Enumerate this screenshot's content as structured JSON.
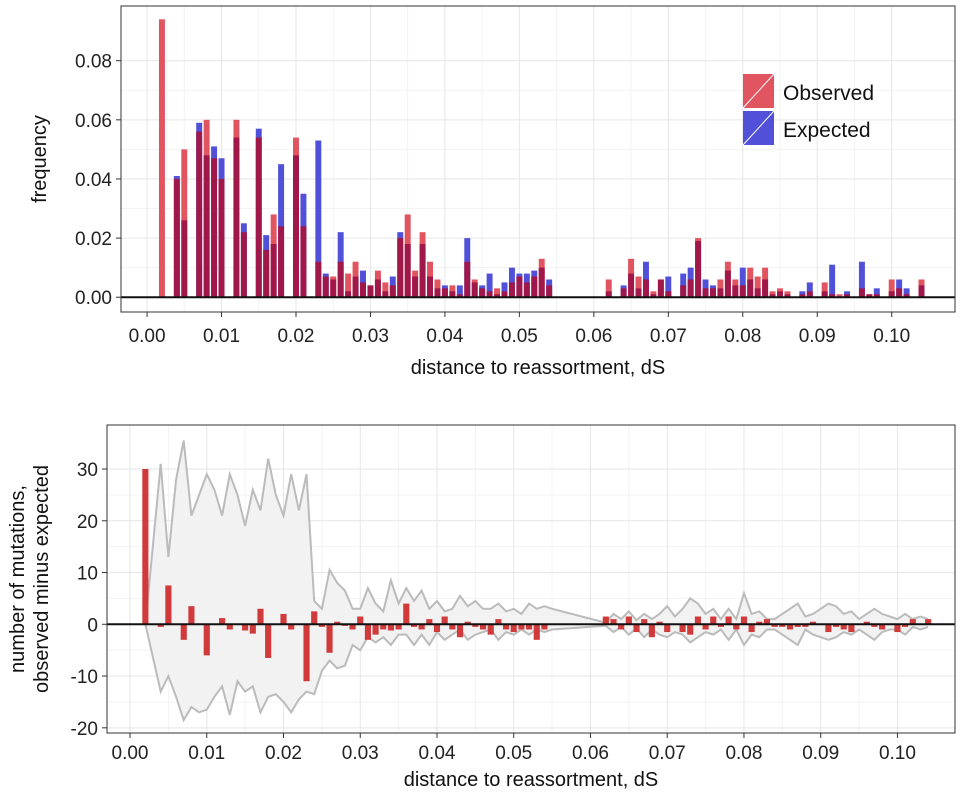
{
  "colors": {
    "observed": "#e0555f",
    "expected": "#5050d8",
    "overlap": "#a0174a",
    "residual": "#d03a3a",
    "envelope_fill": "#f2f2f2",
    "envelope_line": "#bbbbbb"
  },
  "chart_data": [
    {
      "type": "bar",
      "panel": "top",
      "xlabel": "distance to reassortment, dS",
      "ylabel": "frequency",
      "xlim": [
        -0.0035,
        0.1085
      ],
      "ylim": [
        -0.005,
        0.0985
      ],
      "x_ticks": [
        0.0,
        0.01,
        0.02,
        0.03,
        0.04,
        0.05,
        0.06,
        0.07,
        0.08,
        0.09,
        0.1
      ],
      "x_tick_labels": [
        "0.00",
        "0.01",
        "0.02",
        "0.03",
        "0.04",
        "0.05",
        "0.06",
        "0.07",
        "0.08",
        "0.09",
        "0.10"
      ],
      "y_ticks": [
        0.0,
        0.02,
        0.04,
        0.06,
        0.08
      ],
      "y_tick_labels": [
        "0.00",
        "0.02",
        "0.04",
        "0.06",
        "0.08"
      ],
      "grid": true,
      "legend": {
        "placement": "top-right",
        "entries": [
          "Observed",
          "Expected"
        ]
      },
      "bar_width": 0.0008,
      "series": [
        {
          "name": "Observed",
          "x": [
            0.002,
            0.004,
            0.005,
            0.007,
            0.008,
            0.009,
            0.01,
            0.012,
            0.013,
            0.015,
            0.016,
            0.017,
            0.018,
            0.02,
            0.021,
            0.023,
            0.024,
            0.025,
            0.026,
            0.027,
            0.028,
            0.029,
            0.03,
            0.031,
            0.032,
            0.033,
            0.034,
            0.035,
            0.036,
            0.037,
            0.038,
            0.039,
            0.04,
            0.041,
            0.042,
            0.043,
            0.044,
            0.045,
            0.046,
            0.047,
            0.048,
            0.049,
            0.05,
            0.051,
            0.052,
            0.053,
            0.054,
            0.062,
            0.064,
            0.065,
            0.066,
            0.067,
            0.068,
            0.069,
            0.07,
            0.072,
            0.073,
            0.074,
            0.075,
            0.076,
            0.077,
            0.078,
            0.079,
            0.08,
            0.081,
            0.082,
            0.083,
            0.084,
            0.085,
            0.086,
            0.088,
            0.089,
            0.091,
            0.092,
            0.093,
            0.094,
            0.096,
            0.097,
            0.098,
            0.1,
            0.101,
            0.102,
            0.104
          ],
          "values": [
            0.094,
            0.04,
            0.05,
            0.056,
            0.06,
            0.047,
            0.04,
            0.06,
            0.022,
            0.054,
            0.016,
            0.028,
            0.024,
            0.054,
            0.024,
            0.012,
            0.007,
            0.007,
            0.012,
            0.008,
            0.012,
            0.005,
            0.004,
            0.009,
            0.005,
            0.004,
            0.02,
            0.028,
            0.009,
            0.022,
            0.012,
            0.006,
            0.003,
            0.004,
            0.001,
            0.012,
            0.006,
            0.003,
            0.002,
            0.003,
            0.002,
            0.005,
            0.007,
            0.005,
            0.007,
            0.013,
            0.004,
            0.006,
            0.003,
            0.013,
            0.007,
            0.006,
            0.002,
            0.006,
            0.002,
            0.004,
            0.006,
            0.02,
            0.003,
            0.003,
            0.006,
            0.012,
            0.006,
            0.004,
            0.01,
            0.007,
            0.01,
            0.002,
            0.003,
            0.002,
            0.001,
            0.002,
            0.005,
            0.001,
            0.001,
            0.001,
            0.003,
            0.001,
            0.001,
            0.006,
            0.003,
            0.001,
            0.006
          ]
        },
        {
          "name": "Expected",
          "x": [
            0.002,
            0.004,
            0.005,
            0.007,
            0.008,
            0.009,
            0.01,
            0.012,
            0.013,
            0.015,
            0.016,
            0.017,
            0.018,
            0.02,
            0.021,
            0.023,
            0.024,
            0.025,
            0.026,
            0.027,
            0.028,
            0.029,
            0.03,
            0.031,
            0.032,
            0.033,
            0.034,
            0.035,
            0.036,
            0.037,
            0.038,
            0.039,
            0.04,
            0.041,
            0.042,
            0.043,
            0.044,
            0.045,
            0.046,
            0.047,
            0.048,
            0.049,
            0.05,
            0.051,
            0.052,
            0.053,
            0.054,
            0.062,
            0.064,
            0.065,
            0.066,
            0.067,
            0.068,
            0.069,
            0.07,
            0.072,
            0.073,
            0.074,
            0.075,
            0.076,
            0.077,
            0.078,
            0.079,
            0.08,
            0.081,
            0.082,
            0.083,
            0.084,
            0.085,
            0.086,
            0.088,
            0.089,
            0.091,
            0.092,
            0.093,
            0.094,
            0.096,
            0.097,
            0.098,
            0.1,
            0.101,
            0.102,
            0.104
          ],
          "values": [
            0.0,
            0.041,
            0.026,
            0.059,
            0.048,
            0.051,
            0.047,
            0.054,
            0.025,
            0.057,
            0.021,
            0.018,
            0.045,
            0.048,
            0.035,
            0.053,
            0.008,
            0.006,
            0.022,
            0.002,
            0.007,
            0.009,
            0.004,
            0.006,
            0.002,
            0.007,
            0.022,
            0.018,
            0.007,
            0.018,
            0.007,
            0.003,
            0.004,
            0.002,
            0.004,
            0.02,
            0.005,
            0.004,
            0.008,
            0.001,
            0.005,
            0.01,
            0.008,
            0.008,
            0.009,
            0.01,
            0.006,
            0.002,
            0.004,
            0.008,
            0.003,
            0.012,
            0.001,
            0.006,
            0.007,
            0.008,
            0.01,
            0.019,
            0.006,
            0.004,
            0.003,
            0.009,
            0.004,
            0.01,
            0.006,
            0.003,
            0.006,
            0.001,
            0.002,
            0.001,
            0.002,
            0.005,
            0.002,
            0.011,
            0.0,
            0.002,
            0.012,
            0.001,
            0.003,
            0.002,
            0.006,
            0.003,
            0.004
          ]
        }
      ]
    },
    {
      "type": "bar",
      "panel": "bottom",
      "xlabel": "distance to reassortment, dS",
      "ylabel_lines": [
        "number of mutations,",
        "observed minus expected"
      ],
      "xlim": [
        -0.003,
        0.1075
      ],
      "ylim": [
        -21,
        38.5
      ],
      "x_ticks": [
        0.0,
        0.01,
        0.02,
        0.03,
        0.04,
        0.05,
        0.06,
        0.07,
        0.08,
        0.09,
        0.1
      ],
      "x_tick_labels": [
        "0.00",
        "0.01",
        "0.02",
        "0.03",
        "0.04",
        "0.05",
        "0.06",
        "0.07",
        "0.08",
        "0.09",
        "0.10"
      ],
      "y_ticks": [
        -20,
        -10,
        0,
        10,
        20,
        30
      ],
      "y_tick_labels": [
        "-20",
        "-10",
        "0",
        "10",
        "20",
        "30"
      ],
      "grid": true,
      "bar_width": 0.0008,
      "x": [
        0.002,
        0.004,
        0.005,
        0.007,
        0.008,
        0.01,
        0.012,
        0.013,
        0.015,
        0.016,
        0.017,
        0.018,
        0.02,
        0.021,
        0.023,
        0.024,
        0.025,
        0.026,
        0.027,
        0.028,
        0.029,
        0.03,
        0.031,
        0.032,
        0.033,
        0.034,
        0.035,
        0.036,
        0.037,
        0.038,
        0.039,
        0.04,
        0.041,
        0.042,
        0.043,
        0.044,
        0.045,
        0.046,
        0.047,
        0.048,
        0.049,
        0.05,
        0.051,
        0.052,
        0.053,
        0.054,
        0.062,
        0.063,
        0.064,
        0.065,
        0.066,
        0.067,
        0.068,
        0.069,
        0.07,
        0.072,
        0.073,
        0.074,
        0.075,
        0.076,
        0.077,
        0.078,
        0.079,
        0.08,
        0.081,
        0.082,
        0.083,
        0.084,
        0.085,
        0.086,
        0.087,
        0.088,
        0.089,
        0.091,
        0.092,
        0.093,
        0.094,
        0.096,
        0.097,
        0.098,
        0.1,
        0.101,
        0.102,
        0.104
      ],
      "values": [
        30.0,
        -0.5,
        7.5,
        -3.0,
        3.5,
        -6.0,
        1.2,
        -1.0,
        -1.2,
        -1.8,
        3.0,
        -6.5,
        2.0,
        -1.0,
        -11.0,
        2.5,
        -0.5,
        -5.5,
        0.5,
        -0.3,
        -1.0,
        1.5,
        -3.0,
        -2.0,
        -1.0,
        -1.2,
        -1.0,
        4.0,
        -0.5,
        -1.0,
        1.0,
        -1.5,
        1.5,
        -1.0,
        -2.5,
        0.5,
        -0.5,
        -1.0,
        -2.0,
        1.0,
        -1.0,
        -1.5,
        -1.0,
        -1.0,
        -3.0,
        -1.0,
        1.5,
        1.0,
        -1.0,
        1.5,
        -1.5,
        1.0,
        -2.5,
        0.5,
        -1.5,
        -1.5,
        -2.0,
        1.5,
        -1.0,
        1.5,
        -0.5,
        1.5,
        -1.0,
        1.5,
        -1.5,
        0.5,
        1.0,
        -0.5,
        -0.5,
        -1.0,
        -0.5,
        -0.5,
        0.5,
        -1.5,
        -0.5,
        -1.0,
        -1.5,
        0.5,
        -0.5,
        -1.0,
        -1.5,
        -0.5,
        1.0,
        1.0
      ],
      "envelope": {
        "x": [
          0.002,
          0.004,
          0.005,
          0.006,
          0.007,
          0.008,
          0.009,
          0.01,
          0.011,
          0.012,
          0.013,
          0.014,
          0.015,
          0.016,
          0.017,
          0.018,
          0.019,
          0.02,
          0.021,
          0.022,
          0.023,
          0.024,
          0.025,
          0.026,
          0.027,
          0.028,
          0.029,
          0.03,
          0.031,
          0.032,
          0.033,
          0.034,
          0.035,
          0.036,
          0.037,
          0.038,
          0.039,
          0.04,
          0.041,
          0.042,
          0.043,
          0.044,
          0.045,
          0.046,
          0.047,
          0.048,
          0.049,
          0.05,
          0.051,
          0.052,
          0.053,
          0.054,
          0.055,
          0.062,
          0.063,
          0.064,
          0.065,
          0.066,
          0.067,
          0.068,
          0.069,
          0.07,
          0.071,
          0.072,
          0.073,
          0.074,
          0.075,
          0.076,
          0.077,
          0.078,
          0.079,
          0.08,
          0.081,
          0.082,
          0.083,
          0.084,
          0.085,
          0.086,
          0.087,
          0.088,
          0.089,
          0.09,
          0.091,
          0.092,
          0.093,
          0.094,
          0.095,
          0.096,
          0.097,
          0.098,
          0.099,
          0.1,
          0.101,
          0.102,
          0.103,
          0.104
        ],
        "upper": [
          0.0,
          31.0,
          13.0,
          28.0,
          35.5,
          21.0,
          25.0,
          29.0,
          26.0,
          21.0,
          29.0,
          25.0,
          19.0,
          26.0,
          22.0,
          32.0,
          25.0,
          21.0,
          29.0,
          22.0,
          29.0,
          4.5,
          3.0,
          10.5,
          8.0,
          6.5,
          3.0,
          3.0,
          7.0,
          4.0,
          2.5,
          8.5,
          4.0,
          7.0,
          4.5,
          6.5,
          3.0,
          4.5,
          2.5,
          3.0,
          5.5,
          3.5,
          4.5,
          3.0,
          3.0,
          4.0,
          2.5,
          3.0,
          2.0,
          4.0,
          3.0,
          3.5,
          3.0,
          0.3,
          2.0,
          1.0,
          2.5,
          0.8,
          2.0,
          1.0,
          2.0,
          3.5,
          1.5,
          3.0,
          5.0,
          4.0,
          2.0,
          3.0,
          1.0,
          3.0,
          1.0,
          6.0,
          2.0,
          2.5,
          1.0,
          1.0,
          2.0,
          3.0,
          4.0,
          1.5,
          2.0,
          3.0,
          4.0,
          3.5,
          2.0,
          2.5,
          1.0,
          2.0,
          3.0,
          2.0,
          1.5,
          1.0,
          2.0,
          1.0,
          1.5,
          1.0
        ],
        "lower": [
          0.0,
          -13.0,
          -10.0,
          -14.0,
          -18.5,
          -16.0,
          -17.0,
          -16.5,
          -14.0,
          -12.0,
          -17.5,
          -11.0,
          -13.0,
          -12.0,
          -17.0,
          -14.0,
          -13.5,
          -15.0,
          -17.0,
          -14.5,
          -13.0,
          -13.5,
          -9.0,
          -7.0,
          -8.5,
          -8.0,
          -4.0,
          -5.0,
          -2.5,
          -3.5,
          -2.5,
          -4.0,
          -2.0,
          -2.0,
          -4.0,
          -2.0,
          -4.0,
          -1.5,
          -3.0,
          -2.0,
          -1.0,
          -3.0,
          -2.0,
          -1.5,
          -1.0,
          -3.0,
          -1.5,
          -2.0,
          -1.0,
          -2.0,
          -1.0,
          -1.5,
          -1.0,
          -0.3,
          -1.5,
          -0.5,
          -2.0,
          -0.8,
          -2.5,
          -1.0,
          -2.0,
          -2.5,
          -1.5,
          -2.0,
          -3.5,
          -2.5,
          -1.5,
          -2.0,
          -1.0,
          -3.0,
          -1.0,
          -4.0,
          -2.0,
          -2.5,
          -1.0,
          -1.0,
          -2.0,
          -3.0,
          -4.0,
          -1.0,
          -2.0,
          -2.5,
          -3.0,
          -2.5,
          -1.5,
          -2.0,
          -1.0,
          -2.0,
          -3.0,
          -1.5,
          -1.0,
          -1.0,
          -2.0,
          -0.5,
          -1.0,
          -0.5
        ]
      }
    }
  ]
}
